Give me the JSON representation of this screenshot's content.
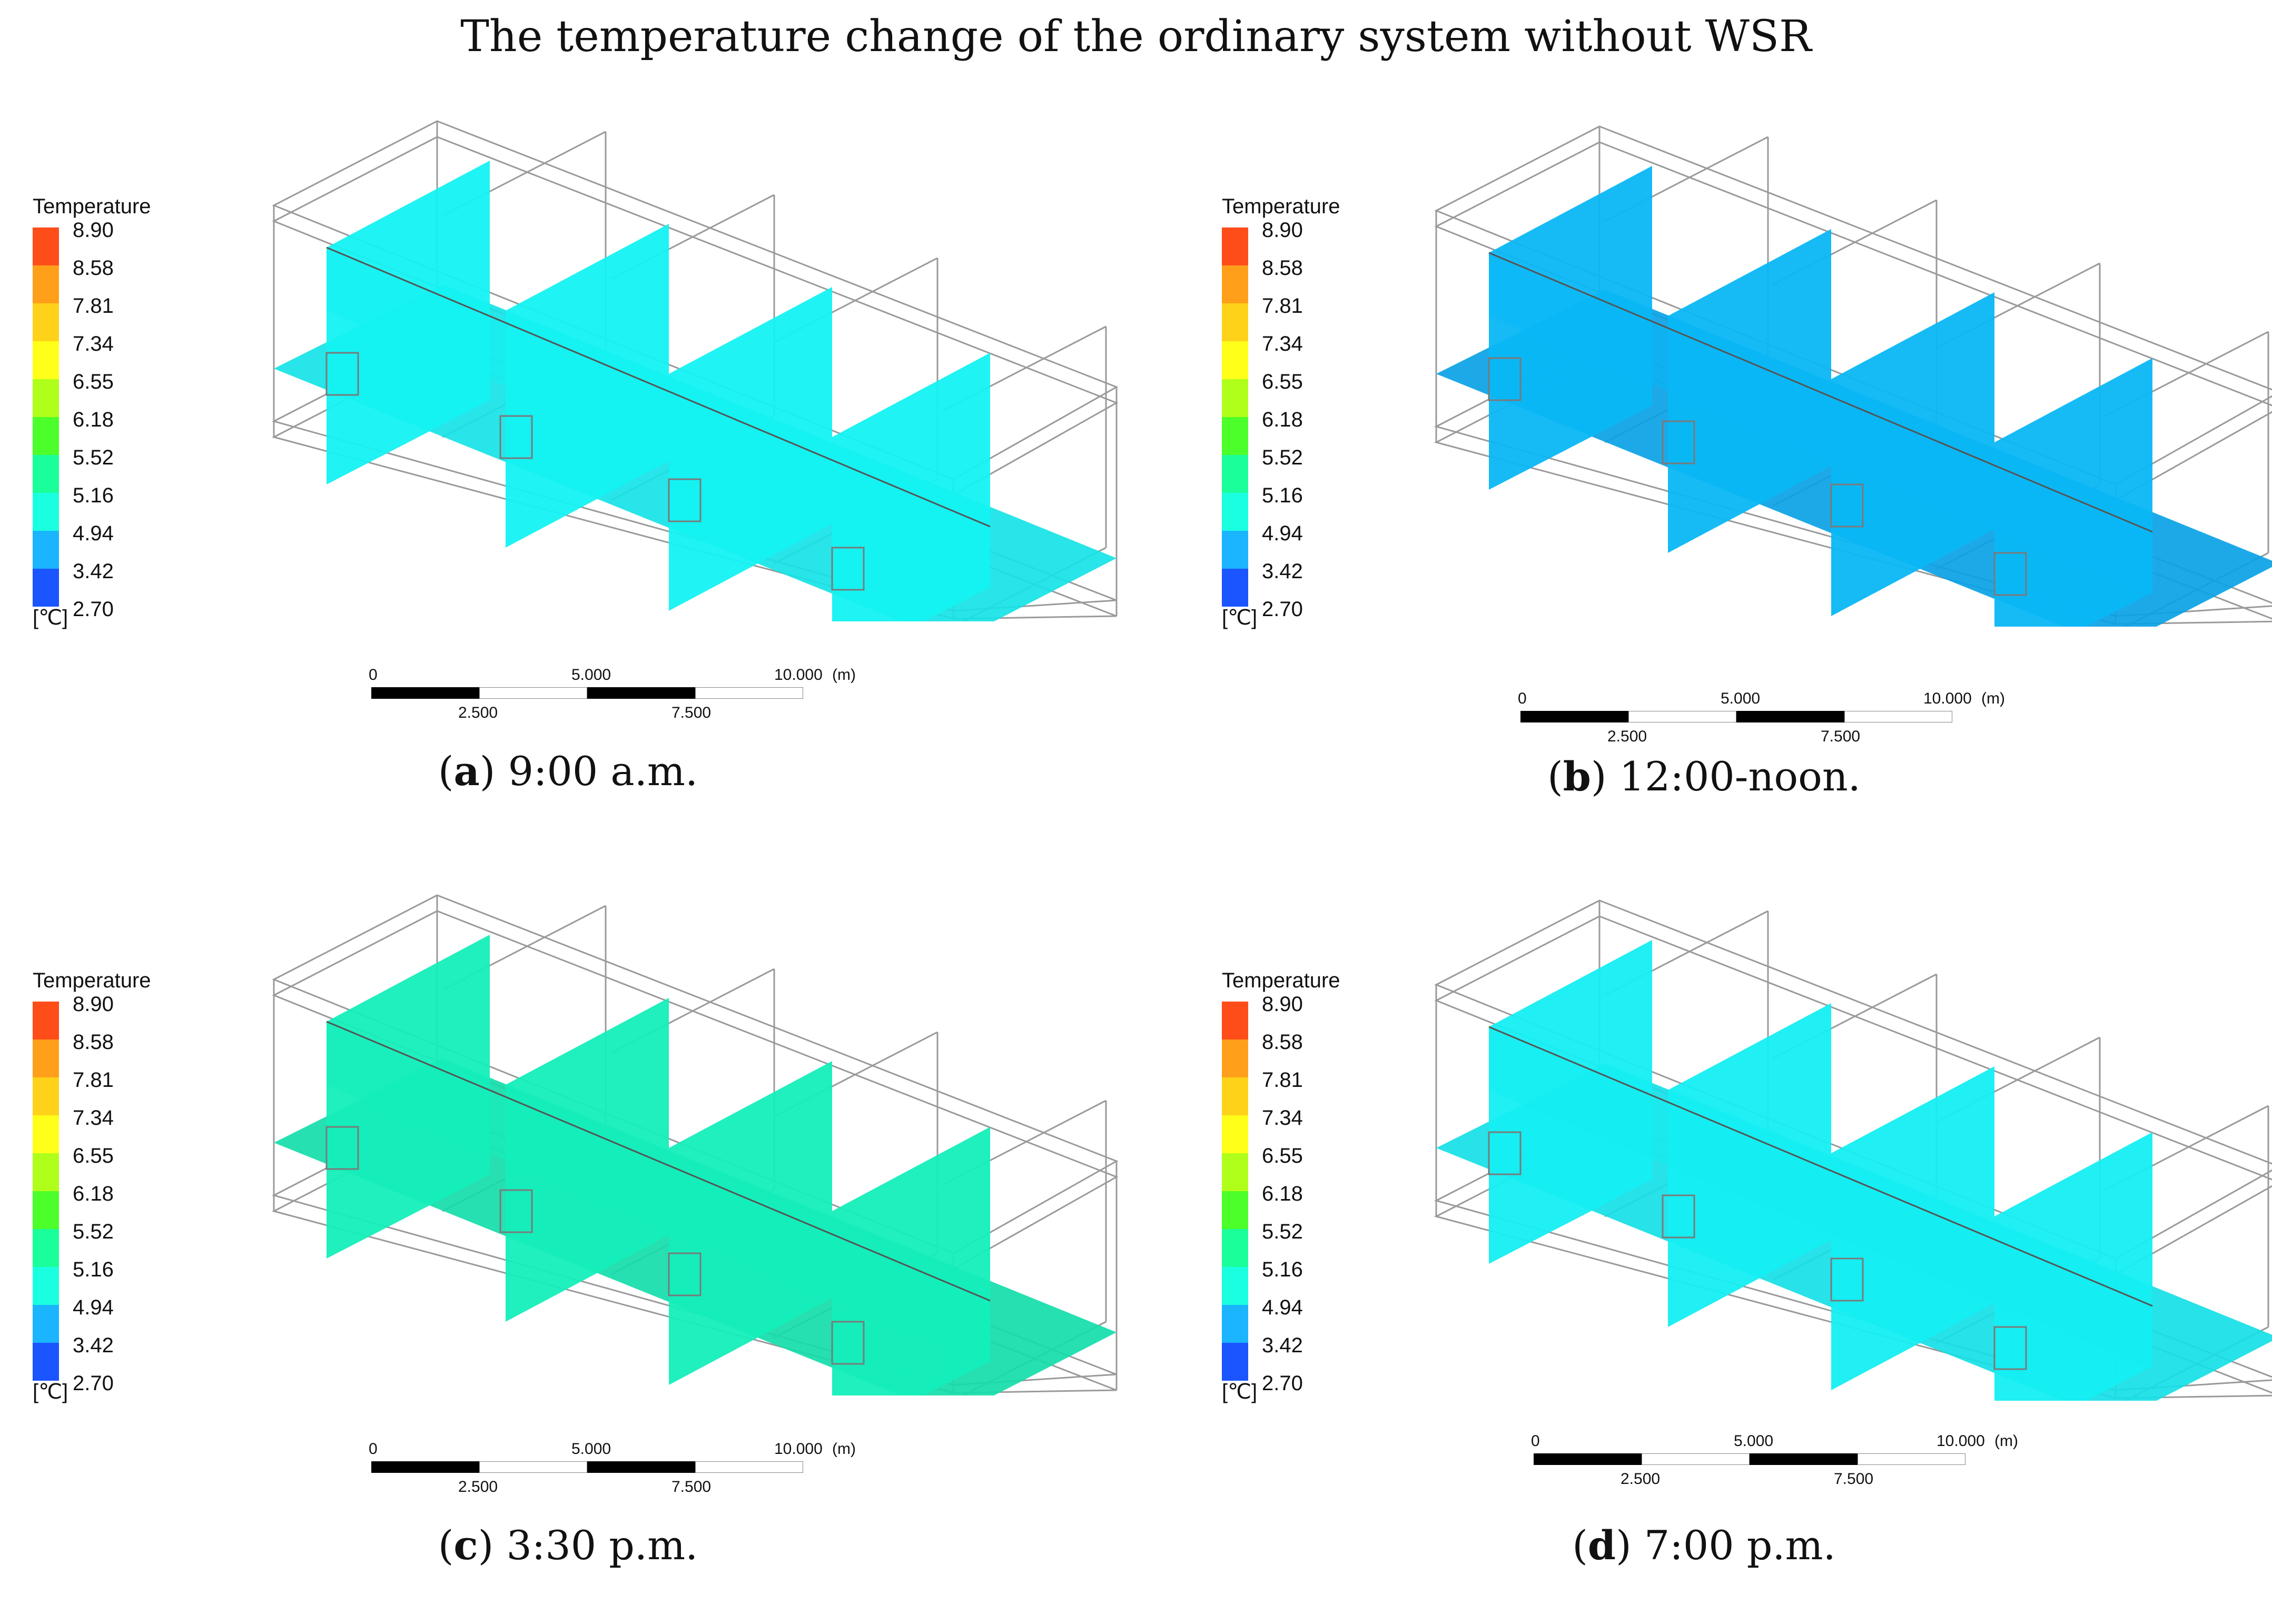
{
  "title": "The temperature change of the ordinary system without WSR",
  "legend": {
    "title": "Temperature",
    "unit": "[℃]",
    "values": [
      "8.90",
      "8.58",
      "7.81",
      "7.34",
      "6.55",
      "6.18",
      "5.52",
      "5.16",
      "4.94",
      "3.42",
      "2.70"
    ],
    "colors": [
      "#ff4d1a",
      "#ff9f1a",
      "#ffd21a",
      "#ffff1a",
      "#b0ff1a",
      "#4dff2a",
      "#1aff9a",
      "#1affe0",
      "#1ab4ff",
      "#1a55ff",
      "#1a55ff"
    ]
  },
  "scale_bar": {
    "labels_top": [
      "0",
      "5.000",
      "10.000",
      "(m)"
    ],
    "labels_bottom": [
      "2.500",
      "7.500"
    ]
  },
  "panels": [
    {
      "letter": "a",
      "caption": "9:00 a.m.",
      "plane_color": "#14f2f2",
      "floor_color": "#15e3e6"
    },
    {
      "letter": "b",
      "caption": "12:00-noon.",
      "plane_color": "#09b7f6",
      "floor_color": "#0aa2e6"
    },
    {
      "letter": "c",
      "caption": "3:30 p.m.",
      "plane_color": "#14eebb",
      "floor_color": "#14ddaa"
    },
    {
      "letter": "d",
      "caption": "7:00 p.m.",
      "plane_color": "#14eef2",
      "floor_color": "#15dfe6"
    }
  ]
}
